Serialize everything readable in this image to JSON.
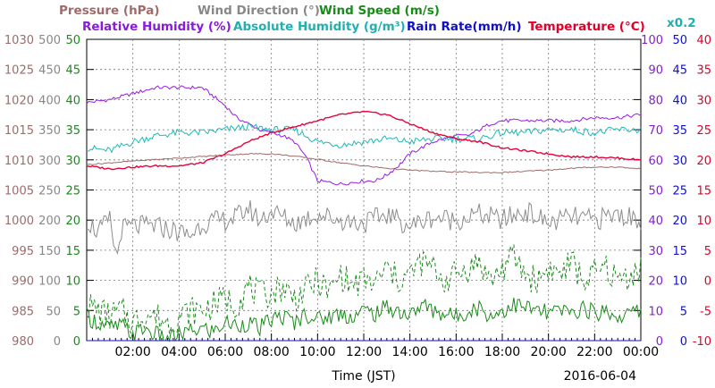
{
  "chart_data": {
    "type": "line",
    "date": "2016-06-04",
    "xlabel": "Time (JST)",
    "x_ticks": [
      "02:00",
      "04:00",
      "06:00",
      "08:00",
      "10:00",
      "12:00",
      "14:00",
      "16:00",
      "18:00",
      "20:00",
      "22:00",
      "00:00"
    ],
    "titles": [
      {
        "text": "Pressure (hPa)",
        "color": "#a06a6a"
      },
      {
        "text": "Wind Direction (°)",
        "color": "#888888"
      },
      {
        "text": "Wind Speed (m/s)",
        "color": "#1a8a1a"
      },
      {
        "text": "Relative Humidity (%)",
        "color": "#8a1ad8"
      },
      {
        "text": "Absolute Humidity (g/m³)",
        "color": "#20b0b0"
      },
      {
        "text": "Rain Rate(mm/h)",
        "color": "#1010c8"
      },
      {
        "text": "Temperature (°C)",
        "color": "#e0002a"
      },
      {
        "text": "x0.2",
        "color": "#20b0b0"
      }
    ],
    "axes": {
      "pressure": {
        "color": "#a06a6a",
        "ticks": [
          "1030",
          "1025",
          "1020",
          "1015",
          "1010",
          "1005",
          "1000",
          "995",
          "990",
          "985",
          "980"
        ]
      },
      "wind_direction": {
        "color": "#888888",
        "ticks": [
          "500",
          "450",
          "400",
          "350",
          "300",
          "250",
          "200",
          "150",
          "100",
          "50",
          "0"
        ]
      },
      "wind_speed": {
        "color": "#1a8a1a",
        "ticks": [
          "50",
          "45",
          "40",
          "35",
          "30",
          "25",
          "20",
          "15",
          "10",
          "5",
          "0"
        ]
      },
      "humidity": {
        "color": "#8a1ad8",
        "ticks": [
          "100",
          "90",
          "80",
          "70",
          "60",
          "50",
          "40",
          "30",
          "20",
          "10",
          "0"
        ]
      },
      "rain_rate": {
        "color": "#1010c8",
        "ticks": [
          "50",
          "45",
          "40",
          "35",
          "30",
          "25",
          "20",
          "15",
          "10",
          "5",
          "0"
        ]
      },
      "temperature": {
        "color": "#e0002a",
        "ticks": [
          "40",
          "35",
          "30",
          "25",
          "20",
          "15",
          "10",
          "5",
          "0",
          "-5",
          "-10"
        ]
      }
    },
    "series": [
      {
        "name": "Relative Humidity",
        "axis": "humidity",
        "color": "#9a1ae8",
        "x": [
          0,
          1,
          2,
          3,
          4,
          5,
          5.5,
          6,
          6.5,
          7,
          7.5,
          8,
          8.5,
          9,
          9.5,
          10,
          11,
          12,
          12.5,
          13,
          13.5,
          14,
          15,
          16,
          16.5,
          17,
          17.5,
          18,
          19,
          20,
          21,
          22,
          23,
          24
        ],
        "values": [
          79,
          80,
          82,
          84,
          84,
          84,
          81,
          78,
          74,
          72,
          70,
          69,
          68,
          66,
          61,
          53,
          52,
          53,
          53,
          55,
          58,
          62,
          66,
          68,
          68,
          70,
          72,
          73,
          73,
          73,
          73,
          74,
          74,
          75
        ]
      },
      {
        "name": "Absolute Humidity",
        "axis": "humidity",
        "color": "#20b8b8",
        "x": [
          0,
          1,
          2,
          3,
          4,
          5,
          6,
          7,
          8,
          9,
          10,
          11,
          12,
          13,
          14,
          15,
          16,
          17,
          18,
          19,
          20,
          21,
          22,
          23,
          24
        ],
        "values": [
          64,
          63,
          66,
          68,
          69,
          69,
          70,
          71,
          70,
          70,
          66,
          65,
          66,
          67,
          66,
          67,
          67,
          67,
          69,
          69,
          70,
          70,
          69,
          70,
          70
        ]
      },
      {
        "name": "Temperature",
        "axis": "temperature",
        "color": "#e8003a",
        "x": [
          0,
          1,
          2,
          3,
          4,
          5,
          6,
          7,
          8,
          9,
          10,
          11,
          12,
          13,
          14,
          15,
          16,
          17,
          18,
          19,
          20,
          21,
          22,
          23,
          24
        ],
        "values": [
          19,
          18.5,
          18.8,
          19,
          19,
          19.5,
          21,
          23,
          24.5,
          25.5,
          26.5,
          27.5,
          28,
          27.5,
          26,
          24.5,
          23.5,
          23,
          22,
          21.5,
          21,
          20.5,
          20.5,
          20.3,
          20
        ]
      },
      {
        "name": "Pressure",
        "axis": "pressure",
        "color": "#a06a6a",
        "x": [
          0,
          2,
          4,
          6,
          7,
          8,
          9,
          10,
          11,
          12,
          13,
          14,
          15,
          16,
          17,
          18,
          19,
          20,
          21,
          22,
          23,
          24
        ],
        "values": [
          1009.2,
          1009.8,
          1010.3,
          1010.8,
          1011,
          1011,
          1010.6,
          1010.1,
          1009.5,
          1009,
          1008.6,
          1008.3,
          1008.1,
          1008,
          1007.9,
          1007.9,
          1008.1,
          1008.3,
          1008.6,
          1008.8,
          1008.8,
          1008.5
        ]
      },
      {
        "name": "Wind Direction",
        "axis": "wind_direction",
        "color": "#8c8c8c",
        "x": [
          0,
          0.5,
          1,
          1.3,
          1.5,
          2,
          3,
          4,
          4.5,
          5,
          6,
          6.5,
          7,
          7.5,
          8,
          9,
          10,
          11,
          12,
          13,
          14,
          15,
          16,
          17,
          18,
          19,
          20,
          21,
          22,
          23,
          24
        ],
        "values": [
          200,
          180,
          200,
          135,
          185,
          190,
          190,
          180,
          175,
          195,
          200,
          205,
          220,
          200,
          215,
          195,
          210,
          200,
          195,
          210,
          190,
          205,
          200,
          210,
          200,
          215,
          195,
          205,
          200,
          210,
          200
        ]
      },
      {
        "name": "Wind Speed",
        "axis": "wind_speed",
        "color": "#1a8a1a",
        "x": [
          0,
          0.5,
          1,
          1.5,
          2,
          2.5,
          3,
          3.5,
          4,
          4.5,
          5,
          5.5,
          6,
          6.5,
          7,
          7.5,
          8,
          8.5,
          9,
          9.5,
          10,
          10.5,
          11,
          11.5,
          12,
          12.5,
          13,
          13.5,
          14,
          14.5,
          15,
          15.5,
          16,
          16.5,
          17,
          17.5,
          18,
          18.5,
          19,
          19.5,
          20,
          20.5,
          21,
          21.5,
          22,
          22.5,
          23,
          23.5,
          24
        ],
        "values": [
          4,
          3,
          2,
          2.5,
          1,
          2,
          1,
          0,
          1,
          1.5,
          2,
          1.5,
          3,
          2.5,
          3,
          2,
          3.5,
          4,
          3,
          4.5,
          3.5,
          4,
          4.5,
          4,
          5,
          4.5,
          5.5,
          5,
          4,
          6,
          5,
          4.5,
          4,
          5,
          5.5,
          4,
          5,
          6,
          5.5,
          5,
          4.5,
          5,
          4.5,
          5.5,
          4.5,
          5,
          4,
          4.5,
          5
        ]
      },
      {
        "name": "Wind Speed Gust",
        "axis": "wind_speed",
        "color": "#1a8a1a",
        "dashed": true,
        "x": [
          0,
          0.5,
          1,
          1.5,
          2,
          2.5,
          3,
          3.5,
          4,
          4.5,
          5,
          5.5,
          6,
          6.5,
          7,
          7.5,
          8,
          8.5,
          9,
          9.5,
          10,
          10.5,
          11,
          11.5,
          12,
          12.5,
          13,
          13.5,
          14,
          14.5,
          15,
          15.5,
          16,
          16.5,
          17,
          17.5,
          18,
          18.5,
          19,
          19.5,
          20,
          20.5,
          21,
          21.5,
          22,
          22.5,
          23,
          23.5,
          24
        ],
        "values": [
          6,
          5,
          4,
          5,
          3,
          4.5,
          4,
          3,
          4,
          5,
          5,
          6,
          7,
          6,
          9,
          7.5,
          8,
          9,
          7,
          8.5,
          10,
          8,
          11,
          9,
          10,
          9.5,
          12,
          10,
          11,
          13,
          12,
          10,
          11,
          12,
          13,
          10,
          12,
          14,
          11,
          10,
          12,
          11,
          13,
          10,
          11,
          12,
          10,
          11,
          12
        ]
      },
      {
        "name": "Rain Rate",
        "axis": "rain_rate",
        "color": "#1010c8",
        "x": [
          0,
          24
        ],
        "values": [
          0,
          0
        ]
      }
    ]
  }
}
